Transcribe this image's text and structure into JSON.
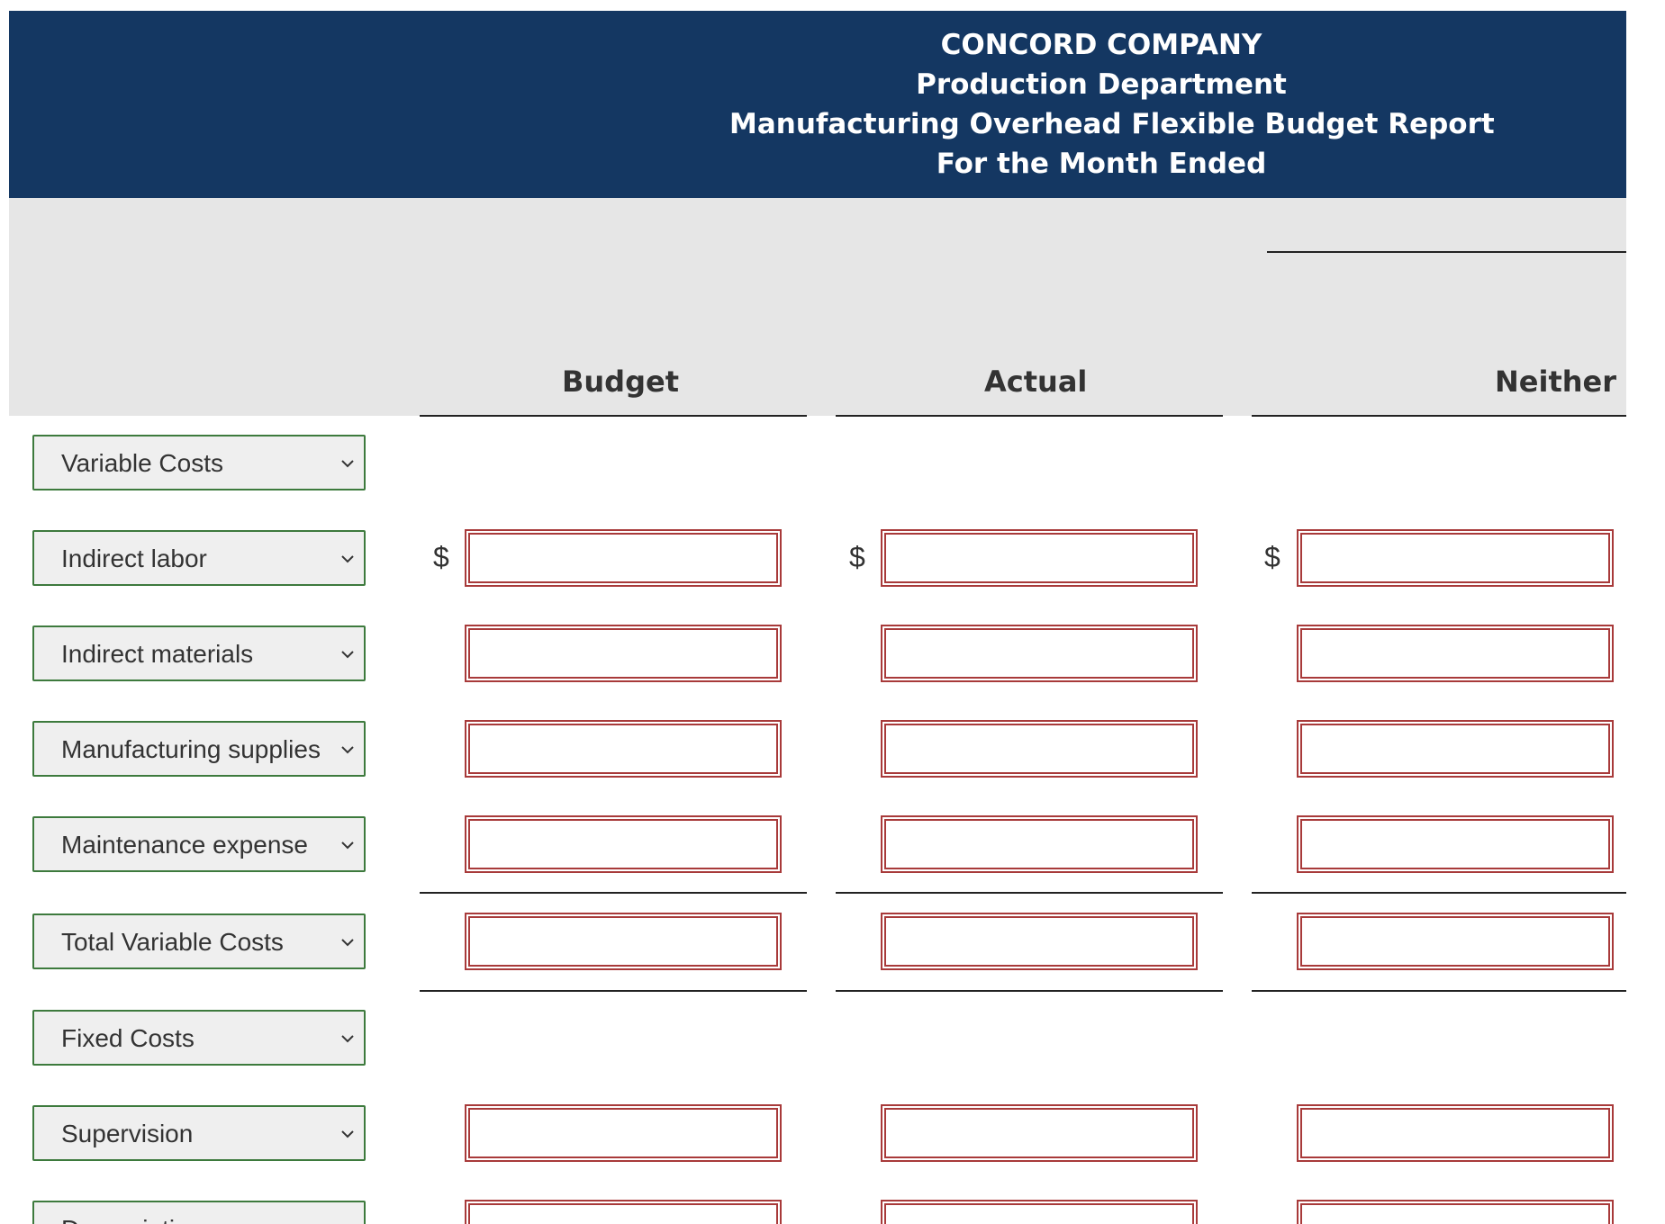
{
  "report": {
    "company": "CONCORD COMPANY",
    "department": "Production Department",
    "title": "Manufacturing Overhead Flexible Budget Report",
    "period": "For the Month Ended"
  },
  "columns": {
    "budget": "Budget",
    "actual": "Actual",
    "difference": "Neither fa"
  },
  "currency_symbol": "$",
  "rows": [
    {
      "label": "Variable Costs"
    },
    {
      "label": "Indirect labor"
    },
    {
      "label": "Indirect materials"
    },
    {
      "label": "Manufacturing supplies"
    },
    {
      "label": "Maintenance expense"
    },
    {
      "label": "Total Variable Costs"
    },
    {
      "label": "Fixed Costs"
    },
    {
      "label": "Supervision"
    },
    {
      "label": "Depreciation"
    }
  ],
  "colors": {
    "banner": "#143762",
    "input_border": "#a83a3a",
    "select_border": "#3d7a3d"
  }
}
